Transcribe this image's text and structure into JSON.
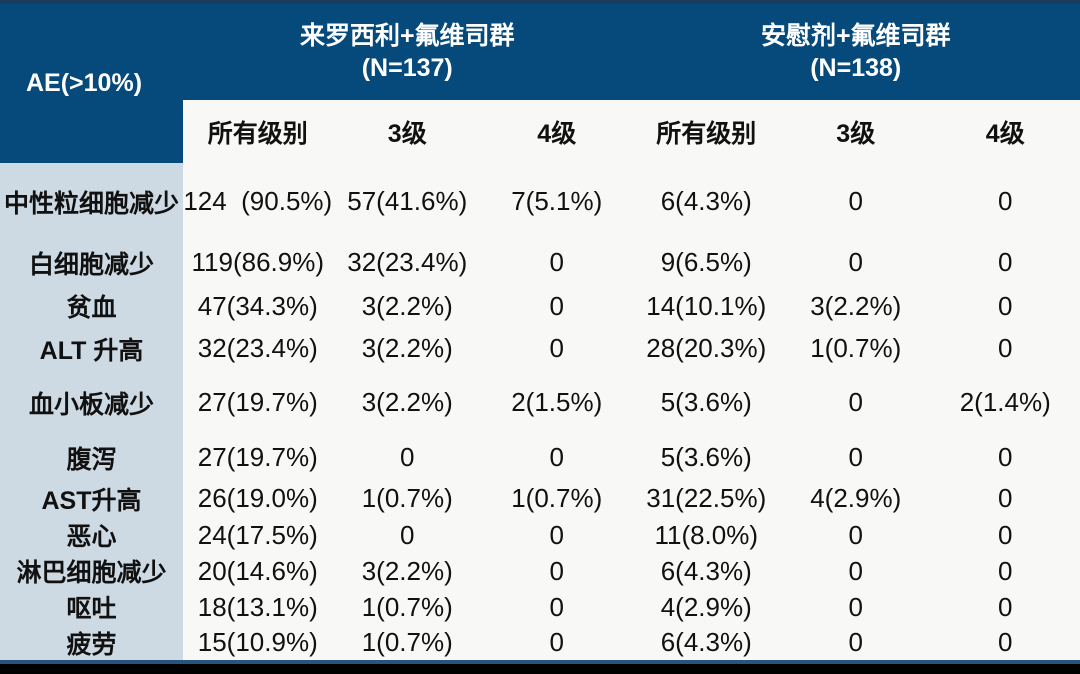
{
  "chart_data": {
    "type": "table",
    "corner_header": "AE(>10%)",
    "column_groups": [
      {
        "label": "来罗西利+氟维司群",
        "sublabel": "(N=137)",
        "span": 3
      },
      {
        "label": "安慰剂+氟维司群",
        "sublabel": "(N=138)",
        "span": 3
      }
    ],
    "columns": [
      "所有级别",
      "3级",
      "4级",
      "所有级别",
      "3级",
      "4级"
    ],
    "rows": [
      {
        "label": "中性粒细胞减少",
        "values": [
          "124  (90.5%)",
          "57(41.6%)",
          "7(5.1%)",
          "6(4.3%)",
          "0",
          "0"
        ]
      },
      {
        "label": "白细胞减少",
        "values": [
          "119(86.9%)",
          "32(23.4%)",
          "0",
          "9(6.5%)",
          "0",
          "0"
        ]
      },
      {
        "label": "贫血",
        "values": [
          "47(34.3%)",
          "3(2.2%)",
          "0",
          "14(10.1%)",
          "3(2.2%)",
          "0"
        ]
      },
      {
        "label": "ALT 升高",
        "values": [
          "32(23.4%)",
          "3(2.2%)",
          "0",
          "28(20.3%)",
          "1(0.7%)",
          "0"
        ]
      },
      {
        "label": "血小板减少",
        "values": [
          "27(19.7%)",
          "3(2.2%)",
          "2(1.5%)",
          "5(3.6%)",
          "0",
          "2(1.4%)"
        ]
      },
      {
        "label": "腹泻",
        "values": [
          "27(19.7%)",
          "0",
          "0",
          "5(3.6%)",
          "0",
          "0"
        ]
      },
      {
        "label": "AST升高",
        "values": [
          "26(19.0%)",
          "1(0.7%)",
          "1(0.7%)",
          "31(22.5%)",
          "4(2.9%)",
          "0"
        ]
      },
      {
        "label": "恶心",
        "values": [
          "24(17.5%)",
          "0",
          "0",
          "11(8.0%)",
          "0",
          "0"
        ]
      },
      {
        "label": "淋巴细胞减少",
        "values": [
          "20(14.6%)",
          "3(2.2%)",
          "0",
          "6(4.3%)",
          "0",
          "0"
        ]
      },
      {
        "label": "呕吐",
        "values": [
          "18(13.1%)",
          "1(0.7%)",
          "0",
          "4(2.9%)",
          "0",
          "0"
        ]
      },
      {
        "label": "疲劳",
        "values": [
          "15(10.9%)",
          "1(0.7%)",
          "0",
          "6(4.3%)",
          "0",
          "0"
        ]
      }
    ]
  },
  "colors": {
    "header_blue": "#06497b",
    "top_strip": "#1a3a5e",
    "row_label_bg": "#cedae3",
    "body_bg": "#f8f8f6",
    "bottom_line": "#27537f",
    "bottom_bar": "#000000",
    "header_text": "#ffffff",
    "body_text": "#111111"
  }
}
